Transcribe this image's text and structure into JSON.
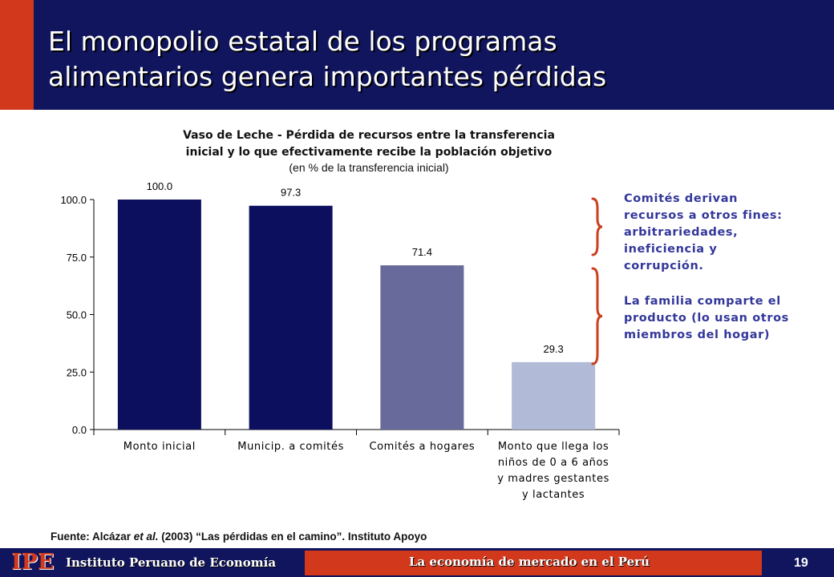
{
  "header": {
    "title": "El monopolio estatal de los programas\nalimentarios genera importantes pérdidas"
  },
  "chart_data": {
    "type": "bar",
    "title": "Vaso de Leche - Pérdida de recursos entre la transferencia\ninicial y lo que efectivamente recibe la población objetivo",
    "subtitle": "(en % de la transferencia inicial)",
    "categories": [
      [
        "Monto inicial"
      ],
      [
        "Municip. a comités"
      ],
      [
        "Comités a hogares"
      ],
      [
        "Monto que llega los",
        "niños de 0 a 6 años",
        "y madres gestantes",
        "y lactantes"
      ]
    ],
    "values": [
      100.0,
      97.3,
      71.4,
      29.3
    ],
    "value_labels": [
      "100.0",
      "97.3",
      "71.4",
      "29.3"
    ],
    "bar_colors": [
      "#0c0f5e",
      "#0c0f5e",
      "#676a9b",
      "#b1bad7"
    ],
    "yticks": [
      "0.0",
      "25.0",
      "50.0",
      "75.0",
      "100.0"
    ],
    "ylim": [
      0,
      100
    ],
    "grid": false
  },
  "annotations": {
    "note1": "Comités derivan\nrecursos a otros fines:\narbitrariedades,\nineficiencia y\ncorrupción.",
    "note2": "La familia comparte el\nproducto (lo usan otros\nmiembros del hogar)",
    "bracket_color": "#c8401e"
  },
  "source": {
    "prefix": "Fuente: Alcázar ",
    "italic": "et al.",
    "suffix": " (2003) “Las pérdidas en el camino”. Instituto Apoyo"
  },
  "footer": {
    "logo": "IPE",
    "institution": "Instituto Peruano de Economía",
    "tagline": "La economía de mercado en el Perú",
    "page_number": "19"
  }
}
